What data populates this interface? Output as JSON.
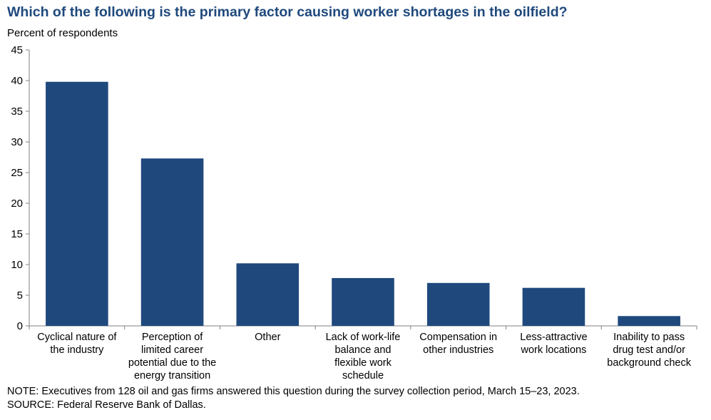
{
  "chart_data": {
    "type": "bar",
    "title": "Which of the following is the primary factor causing worker shortages in the oilfield?",
    "ylabel": "Percent of respondents",
    "xlabel": "",
    "ylim": [
      0,
      45
    ],
    "yticks": [
      0,
      5,
      10,
      15,
      20,
      25,
      30,
      35,
      40,
      45
    ],
    "grid": false,
    "bar_color": "#1f497d",
    "categories": [
      [
        "Cyclical nature of",
        "the industry"
      ],
      [
        "Perception of",
        "limited career",
        "potential due to the",
        "energy transition"
      ],
      [
        "Other"
      ],
      [
        "Lack of work-life",
        "balance and",
        "flexible work",
        "schedule"
      ],
      [
        "Compensation in",
        "other industries"
      ],
      [
        "Less-attractive",
        "work locations"
      ],
      [
        "Inability to pass",
        "drug test and/or",
        "background check"
      ]
    ],
    "values": [
      39.8,
      27.3,
      10.2,
      7.8,
      7.0,
      6.2,
      1.6
    ]
  },
  "notes": {
    "note": "NOTE:  Executives from 128 oil and gas firms answered this question during the survey collection period, March 15–23, 2023.",
    "source": "SOURCE:  Federal Reserve Bank of Dallas."
  }
}
